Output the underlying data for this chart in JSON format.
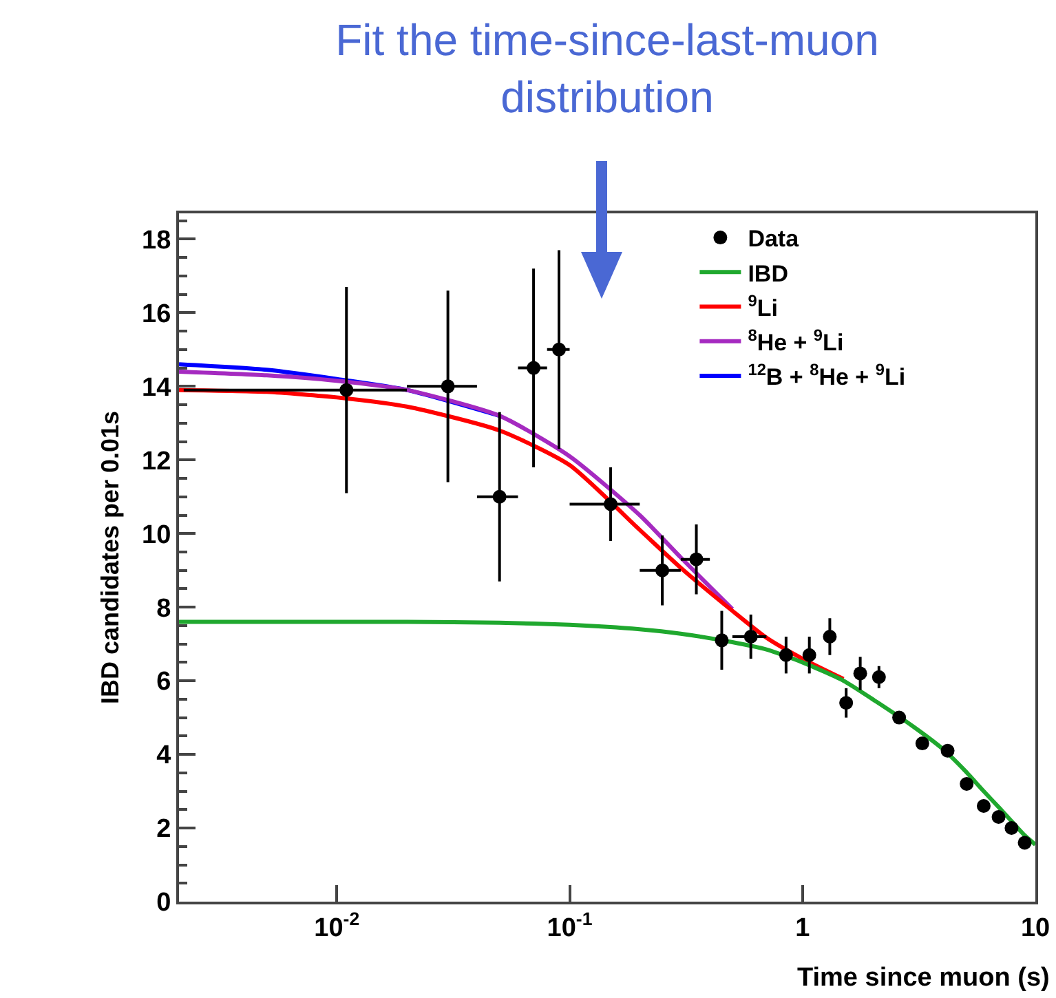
{
  "chart_data": {
    "type": "scatter",
    "title": "Fit the time-since-last-muon distribution",
    "xlabel": "Time since muon (s)",
    "ylabel": "IBD candidates per 0.01s",
    "log": "x",
    "xlim": [
      0.0021,
      10
    ],
    "xticks": [
      {
        "value": 0.01,
        "label": "10$^{-2}$"
      },
      {
        "value": 0.1,
        "label": "10$^{-1}$"
      },
      1,
      10
    ],
    "ylim": [
      0,
      18.7
    ],
    "yticks": [
      0,
      2,
      4,
      6,
      8,
      10,
      12,
      14,
      16,
      18
    ],
    "grid": false,
    "legend": "top right",
    "series": [
      {
        "name": "Data",
        "marker": "circle",
        "color": "#000000",
        "x": [
          0.011,
          0.03,
          0.05,
          0.07,
          0.09,
          0.15,
          0.25,
          0.35,
          0.45,
          0.6,
          0.85,
          1.07,
          1.31,
          1.54,
          1.77,
          2.13,
          2.6,
          3.27,
          4.2,
          5.07,
          6.0,
          6.95,
          7.9,
          9.0
        ],
        "values": [
          13.9,
          14.0,
          11.0,
          14.5,
          15.0,
          10.8,
          9.0,
          9.3,
          7.1,
          7.2,
          6.7,
          6.7,
          7.2,
          5.4,
          6.2,
          6.1,
          5.0,
          4.3,
          4.1,
          3.2,
          2.6,
          2.3,
          2.0,
          1.6
        ],
        "errors": [
          2.8,
          2.6,
          2.3,
          2.7,
          2.7,
          1.0,
          0.95,
          0.95,
          0.8,
          0.6,
          0.5,
          0.5,
          0.5,
          0.4,
          0.45,
          0.3,
          null,
          null,
          null,
          null,
          null,
          null,
          null,
          null
        ],
        "xerrors": [
          [
            0.0088,
            0.009
          ],
          0.01,
          0.01,
          0.01,
          0.01,
          0.05,
          0.05,
          0.05,
          null,
          0.1,
          null,
          null,
          null,
          null,
          null,
          null,
          null,
          null,
          null,
          null,
          null,
          null,
          null,
          null
        ]
      },
      {
        "name": "IBD",
        "type": "line",
        "color": "#1fa82e",
        "x": [
          0.0021,
          0.005,
          0.01,
          0.02,
          0.05,
          0.1,
          0.2,
          0.3,
          0.5,
          0.7,
          1,
          1.5,
          2,
          3,
          4,
          5,
          6,
          7,
          8,
          9,
          10
        ],
        "values": [
          7.6,
          7.6,
          7.6,
          7.6,
          7.58,
          7.52,
          7.4,
          7.28,
          7.05,
          6.85,
          6.5,
          6.0,
          5.5,
          4.75,
          4.15,
          3.55,
          3.0,
          2.55,
          2.15,
          1.8,
          1.55
        ]
      },
      {
        "name": "$^{9}$Li",
        "type": "line",
        "color": "#ff0000",
        "x": [
          0.0021,
          0.005,
          0.01,
          0.02,
          0.05,
          0.1,
          0.2,
          0.3,
          0.5,
          0.7,
          1,
          1.5
        ],
        "values": [
          13.9,
          13.85,
          13.7,
          13.45,
          12.8,
          11.86,
          10.1,
          9.07,
          7.9,
          7.17,
          6.6,
          6.05
        ]
      },
      {
        "name": "$^{8}$He + $^{9}$Li",
        "type": "line",
        "color": "#a52ac0",
        "x": [
          0.0021,
          0.005,
          0.01,
          0.02,
          0.05,
          0.1,
          0.2,
          0.3,
          0.5
        ],
        "values": [
          14.4,
          14.3,
          14.15,
          13.9,
          13.2,
          12.1,
          10.5,
          9.35,
          7.95
        ]
      },
      {
        "name": "$^{12}$B + $^{8}$He + $^{9}$Li",
        "type": "line",
        "color": "#0000ff",
        "x": [
          0.0021,
          0.005,
          0.01,
          0.02,
          0.05
        ],
        "values": [
          14.6,
          14.45,
          14.2,
          13.9,
          13.2
        ]
      }
    ]
  }
}
